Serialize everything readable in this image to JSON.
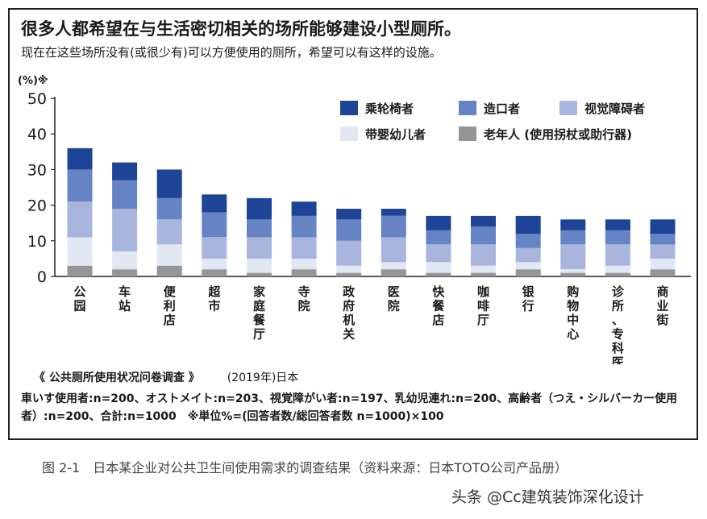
{
  "title": "很多人都希望在与生活密切相关的场所能够建设小型厕所。",
  "subtitle": "现在在这些场所没有(或很少有)可以方便使用的厕所，希望可以有这样的设施。",
  "survey_label": "《 公共厕所使用状况问卷调查 》",
  "survey_year": "(2019年)日本",
  "notes": "車いす使用者:n=200、オストメイト:n=203、視覚障がい者:n=197、乳幼児連れ:n=200、高齢者（つえ・シルバーカー使用者）:n=200、合計:n=1000　※単位%=(回答者数/総回答者数 n=1000)×100",
  "caption": "图 2-1　日本某企业对公共卫生间使用需求的调查结果（资料来源：日本TOTO公司产品册）",
  "watermark": "头条 @Cc建筑装饰深化设计",
  "chart_data": {
    "type": "bar",
    "stacked": true,
    "ylabel": "(%)※",
    "ylim": [
      0,
      50
    ],
    "yticks": [
      0,
      10,
      20,
      30,
      40,
      50
    ],
    "grid": false,
    "legend_position": "top-right",
    "categories": [
      "公园",
      "车站",
      "便利店",
      "超市",
      "家庭餐厅",
      "寺院",
      "政府机关",
      "医院",
      "快餐店",
      "咖啡厅",
      "银行",
      "购物中心",
      "诊所、专科医院",
      "商业街"
    ],
    "series": [
      {
        "name": "老年人 (使用拐杖或助行器)",
        "color": "#939598",
        "values": [
          3,
          2,
          3,
          2,
          1,
          2,
          1,
          2,
          1,
          1,
          2,
          1,
          1,
          2
        ]
      },
      {
        "name": "带婴幼儿者",
        "color": "#e2e8f3",
        "values": [
          8,
          5,
          6,
          3,
          4,
          3,
          2,
          2,
          3,
          2,
          2,
          1,
          2,
          3
        ]
      },
      {
        "name": "视觉障碍者",
        "color": "#a8b6dd",
        "values": [
          10,
          12,
          7,
          6,
          6,
          6,
          7,
          7,
          5,
          6,
          4,
          7,
          6,
          4
        ]
      },
      {
        "name": "造口者",
        "color": "#6683c4",
        "values": [
          9,
          8,
          6,
          7,
          5,
          6,
          6,
          6,
          4,
          5,
          4,
          4,
          4,
          3
        ]
      },
      {
        "name": "乘轮椅者",
        "color": "#1d4496",
        "values": [
          6,
          5,
          8,
          5,
          6,
          4,
          3,
          2,
          4,
          3,
          5,
          3,
          3,
          4
        ]
      }
    ]
  }
}
